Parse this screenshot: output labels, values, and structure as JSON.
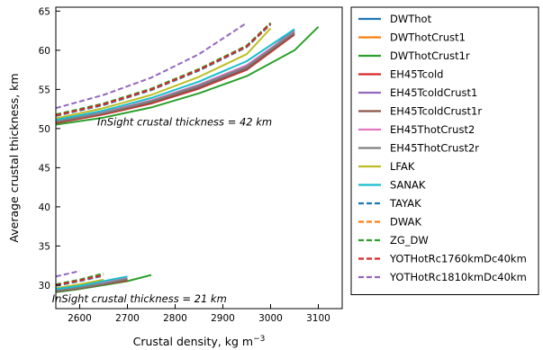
{
  "chart_data": {
    "type": "line",
    "xlabel": "Crustal density, kg m",
    "xlabel_superscript": "−3",
    "ylabel": "Average crustal thickness, km",
    "xlim": [
      2550,
      3150
    ],
    "ylim": [
      27,
      65.5
    ],
    "xticks": [
      2600,
      2700,
      2800,
      2900,
      3000,
      3100
    ],
    "yticks": [
      30,
      35,
      40,
      45,
      50,
      55,
      60,
      65
    ],
    "grid": false,
    "legend_position": "outside-right",
    "annotations": [
      {
        "text": "InSight crustal thickness = 42 km",
        "x": 2820,
        "y": 50.4
      },
      {
        "text": "InSight crustal thickness = 21 km",
        "x": 2725,
        "y": 27.8
      }
    ],
    "series": [
      {
        "name": "DWThot",
        "color": "#1f77b4",
        "dash": "solid",
        "upper": [
          [
            2550,
            50.8
          ],
          [
            2650,
            51.9
          ],
          [
            2750,
            53.4
          ],
          [
            2850,
            55.4
          ],
          [
            2950,
            57.8
          ],
          [
            3050,
            62.6
          ]
        ],
        "lower": [
          [
            2550,
            29.2
          ],
          [
            2600,
            29.6
          ],
          [
            2650,
            30.1
          ],
          [
            2700,
            30.7
          ]
        ]
      },
      {
        "name": "DWThotCrust1",
        "color": "#ff7f0e",
        "dash": "solid",
        "upper": [
          [
            2550,
            50.9
          ],
          [
            2650,
            52.0
          ],
          [
            2750,
            53.5
          ],
          [
            2850,
            55.5
          ],
          [
            2950,
            58.0
          ],
          [
            3050,
            62.4
          ]
        ],
        "lower": [
          [
            2550,
            29.3
          ],
          [
            2600,
            29.7
          ],
          [
            2650,
            30.2
          ],
          [
            2700,
            30.8
          ]
        ]
      },
      {
        "name": "DWThotCrust1r",
        "color": "#2ca02c",
        "dash": "solid",
        "upper": [
          [
            2550,
            50.5
          ],
          [
            2650,
            51.4
          ],
          [
            2750,
            52.7
          ],
          [
            2850,
            54.5
          ],
          [
            2950,
            56.7
          ],
          [
            3050,
            60.0
          ],
          [
            3100,
            63.0
          ]
        ],
        "lower": [
          [
            2550,
            29.1
          ],
          [
            2600,
            29.5
          ],
          [
            2650,
            30.0
          ],
          [
            2700,
            30.5
          ],
          [
            2750,
            31.3
          ]
        ]
      },
      {
        "name": "EH45Tcold",
        "color": "#d62728",
        "dash": "solid",
        "upper": [
          [
            2550,
            50.7
          ],
          [
            2650,
            51.8
          ],
          [
            2750,
            53.2
          ],
          [
            2850,
            55.1
          ],
          [
            2950,
            57.5
          ],
          [
            3050,
            62.0
          ]
        ],
        "lower": [
          [
            2550,
            29.2
          ],
          [
            2600,
            29.6
          ],
          [
            2650,
            30.1
          ],
          [
            2700,
            30.6
          ]
        ]
      },
      {
        "name": "EH45TcoldCrust1",
        "color": "#9467bd",
        "dash": "solid",
        "upper": [
          [
            2550,
            50.9
          ],
          [
            2650,
            52.0
          ],
          [
            2750,
            53.4
          ],
          [
            2850,
            55.3
          ],
          [
            2950,
            57.7
          ],
          [
            3050,
            62.2
          ]
        ],
        "lower": [
          [
            2550,
            29.3
          ],
          [
            2600,
            29.7
          ],
          [
            2650,
            30.2
          ],
          [
            2700,
            30.8
          ]
        ]
      },
      {
        "name": "EH45TcoldCrust1r",
        "color": "#8c564b",
        "dash": "solid",
        "upper": [
          [
            2550,
            50.8
          ],
          [
            2650,
            51.9
          ],
          [
            2750,
            53.3
          ],
          [
            2850,
            55.2
          ],
          [
            2950,
            57.6
          ],
          [
            3050,
            62.1
          ]
        ],
        "lower": [
          [
            2550,
            29.2
          ],
          [
            2600,
            29.6
          ],
          [
            2650,
            30.1
          ],
          [
            2700,
            30.7
          ]
        ]
      },
      {
        "name": "EH45ThotCrust2",
        "color": "#e377c2",
        "dash": "solid",
        "upper": [
          [
            2550,
            51.0
          ],
          [
            2650,
            52.1
          ],
          [
            2750,
            53.6
          ],
          [
            2850,
            55.6
          ],
          [
            2950,
            58.1
          ],
          [
            3050,
            62.4
          ]
        ],
        "lower": [
          [
            2550,
            29.4
          ],
          [
            2600,
            29.8
          ],
          [
            2650,
            30.3
          ],
          [
            2700,
            30.9
          ]
        ]
      },
      {
        "name": "EH45ThotCrust2r",
        "color": "#7f7f7f",
        "dash": "solid",
        "upper": [
          [
            2550,
            50.9
          ],
          [
            2650,
            52.0
          ],
          [
            2750,
            53.5
          ],
          [
            2850,
            55.5
          ],
          [
            2950,
            57.9
          ],
          [
            3050,
            62.3
          ]
        ],
        "lower": [
          [
            2550,
            29.3
          ],
          [
            2600,
            29.7
          ],
          [
            2650,
            30.2
          ],
          [
            2700,
            30.8
          ]
        ]
      },
      {
        "name": "LFAK",
        "color": "#bcbd22",
        "dash": "solid",
        "upper": [
          [
            2550,
            51.3
          ],
          [
            2650,
            52.6
          ],
          [
            2750,
            54.3
          ],
          [
            2850,
            56.6
          ],
          [
            2950,
            59.5
          ],
          [
            3000,
            62.8
          ]
        ],
        "lower": [
          [
            2550,
            29.6
          ],
          [
            2600,
            30.1
          ],
          [
            2650,
            30.7
          ]
        ]
      },
      {
        "name": "SANAK",
        "color": "#17becf",
        "dash": "solid",
        "upper": [
          [
            2550,
            51.1
          ],
          [
            2650,
            52.3
          ],
          [
            2750,
            53.9
          ],
          [
            2850,
            56.0
          ],
          [
            2950,
            58.6
          ],
          [
            3050,
            62.7
          ]
        ],
        "lower": [
          [
            2550,
            29.5
          ],
          [
            2600,
            29.9
          ],
          [
            2650,
            30.5
          ],
          [
            2700,
            31.1
          ]
        ]
      },
      {
        "name": "TAYAK",
        "color": "#1f77b4",
        "dash": "dashed",
        "upper": [
          [
            2550,
            51.6
          ],
          [
            2650,
            53.0
          ],
          [
            2750,
            54.9
          ],
          [
            2850,
            57.4
          ],
          [
            2950,
            60.4
          ],
          [
            3000,
            63.3
          ]
        ],
        "lower": [
          [
            2550,
            29.9
          ],
          [
            2600,
            30.5
          ],
          [
            2650,
            31.2
          ]
        ]
      },
      {
        "name": "DWAK",
        "color": "#ff7f0e",
        "dash": "dashed",
        "upper": [
          [
            2550,
            51.7
          ],
          [
            2650,
            53.1
          ],
          [
            2750,
            55.0
          ],
          [
            2850,
            57.5
          ],
          [
            2950,
            60.5
          ],
          [
            3000,
            63.4
          ]
        ],
        "lower": [
          [
            2550,
            30.0
          ],
          [
            2600,
            30.6
          ],
          [
            2650,
            31.3
          ]
        ]
      },
      {
        "name": "ZG_DW",
        "color": "#2ca02c",
        "dash": "dashed",
        "upper": [
          [
            2550,
            51.8
          ],
          [
            2650,
            53.2
          ],
          [
            2750,
            55.1
          ],
          [
            2850,
            57.6
          ],
          [
            2950,
            60.6
          ],
          [
            3000,
            63.5
          ]
        ],
        "lower": [
          [
            2550,
            30.1
          ],
          [
            2600,
            30.7
          ],
          [
            2650,
            31.5
          ]
        ]
      },
      {
        "name": "YOTHotRc1760kmDc40km",
        "color": "#d62728",
        "dash": "dashed",
        "upper": [
          [
            2550,
            51.7
          ],
          [
            2650,
            53.1
          ],
          [
            2750,
            55.0
          ],
          [
            2850,
            57.5
          ],
          [
            2950,
            60.5
          ],
          [
            3000,
            63.4
          ]
        ],
        "lower": [
          [
            2550,
            30.0
          ],
          [
            2600,
            30.6
          ],
          [
            2650,
            31.3
          ]
        ]
      },
      {
        "name": "YOTHotRc1810kmDc40km",
        "color": "#9467bd",
        "dash": "dashed",
        "upper": [
          [
            2550,
            52.6
          ],
          [
            2650,
            54.3
          ],
          [
            2750,
            56.5
          ],
          [
            2850,
            59.5
          ],
          [
            2950,
            63.5
          ]
        ],
        "lower": [
          [
            2550,
            31.1
          ],
          [
            2600,
            31.8
          ]
        ]
      }
    ]
  }
}
